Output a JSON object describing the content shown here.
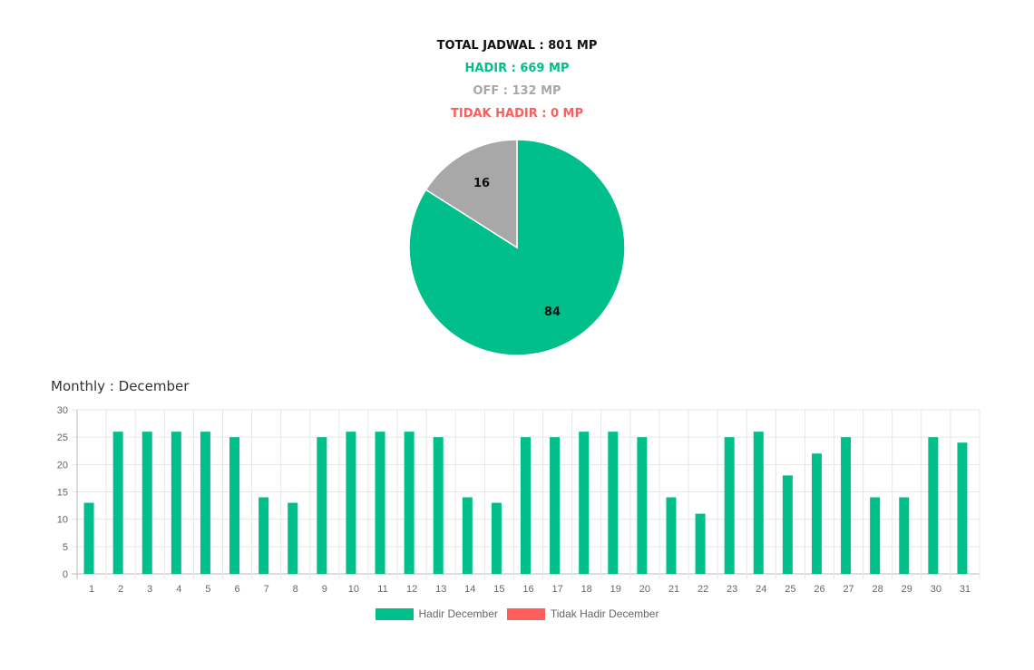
{
  "summary": {
    "total": "TOTAL JADWAL : 801 MP",
    "hadir": "HADIR : 669 MP",
    "off": "OFF : 132 MP",
    "tidak_hadir": "TIDAK HADIR : 0 MP"
  },
  "colors": {
    "hadir": "#00BF8A",
    "off": "#A8A8A8",
    "tidak_hadir": "#FF5C5C",
    "grid": "#E6E6E6",
    "tick": "#666666"
  },
  "monthly": {
    "title": "Monthly : December"
  },
  "chart_data": [
    {
      "type": "pie",
      "labels": [
        "HADIR",
        "OFF",
        "TIDAK HADIR"
      ],
      "values": [
        84,
        16,
        0
      ],
      "data_labels": [
        "84",
        "16",
        ""
      ]
    },
    {
      "type": "bar",
      "categories": [
        "1",
        "2",
        "3",
        "4",
        "5",
        "6",
        "7",
        "8",
        "9",
        "10",
        "11",
        "12",
        "13",
        "14",
        "15",
        "16",
        "17",
        "18",
        "19",
        "20",
        "21",
        "22",
        "23",
        "24",
        "25",
        "26",
        "27",
        "28",
        "29",
        "30",
        "31"
      ],
      "series": [
        {
          "name": "Hadir December",
          "values": [
            13,
            26,
            26,
            26,
            26,
            25,
            14,
            13,
            25,
            26,
            26,
            26,
            25,
            14,
            13,
            25,
            25,
            26,
            26,
            25,
            14,
            11,
            25,
            26,
            18,
            22,
            25,
            14,
            14,
            25,
            24
          ]
        },
        {
          "name": "Tidak Hadir December",
          "values": [
            0,
            0,
            0,
            0,
            0,
            0,
            0,
            0,
            0,
            0,
            0,
            0,
            0,
            0,
            0,
            0,
            0,
            0,
            0,
            0,
            0,
            0,
            0,
            0,
            0,
            0,
            0,
            0,
            0,
            0,
            0
          ]
        }
      ],
      "ylim": [
        0,
        30
      ],
      "yticks": [
        0,
        5,
        10,
        15,
        20,
        25,
        30
      ],
      "grid": true,
      "legend": "bottom"
    }
  ]
}
